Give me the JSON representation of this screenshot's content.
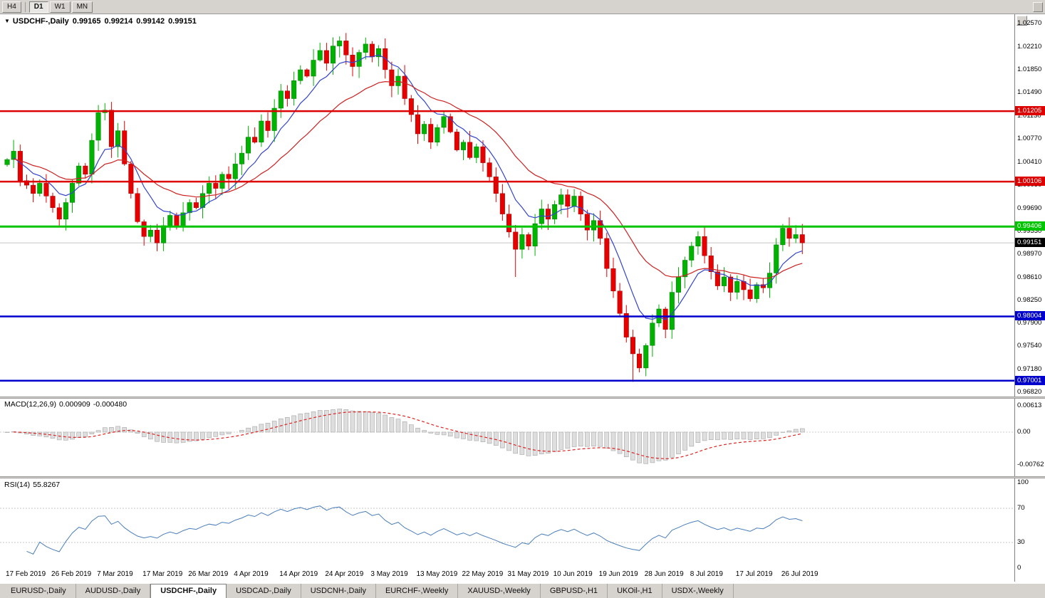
{
  "toolbar": {
    "timeframes": [
      {
        "label": "H4",
        "active": false
      },
      {
        "label": "D1",
        "active": true
      },
      {
        "label": "W1",
        "active": false
      },
      {
        "label": "MN",
        "active": false
      }
    ]
  },
  "header": {
    "symbol": "USDCHF-,Daily",
    "open": "0.99165",
    "high": "0.99214",
    "low": "0.99142",
    "close": "0.99151"
  },
  "price_axis": [
    "1.02570",
    "1.02210",
    "1.01850",
    "1.01490",
    "1.01130",
    "1.00770",
    "1.00410",
    "1.00050",
    "0.99690",
    "0.99330",
    "0.98970",
    "0.98610",
    "0.98250",
    "0.97900",
    "0.97540",
    "0.97180",
    "0.96820"
  ],
  "levels": [
    {
      "value": "1.01205",
      "color": "#dd0000",
      "kind": "resistance-line"
    },
    {
      "value": "1.00106",
      "color": "#dd0000",
      "kind": "resistance-line"
    },
    {
      "value": "0.99406",
      "color": "#00c400",
      "kind": "support-line"
    },
    {
      "value": "0.99151",
      "color": "#000000",
      "kind": "current-price"
    },
    {
      "value": "0.98004",
      "color": "#0000cc",
      "kind": "support-line"
    },
    {
      "value": "0.97001",
      "color": "#0000cc",
      "kind": "support-line"
    }
  ],
  "macd_panel": {
    "name": "MACD(12,26,9)",
    "value": "0.000909",
    "signal": "-0.000480",
    "axis": [
      "0.00613",
      "0.00",
      "-0.00762"
    ]
  },
  "rsi_panel": {
    "name": "RSI(14)",
    "value": "55.8267",
    "axis": [
      "100",
      "70",
      "30",
      "0"
    ]
  },
  "date_axis": [
    "17 Feb 2019",
    "26 Feb 2019",
    "7 Mar 2019",
    "17 Mar 2019",
    "26 Mar 2019",
    "4 Apr 2019",
    "14 Apr 2019",
    "24 Apr 2019",
    "3 May 2019",
    "13 May 2019",
    "22 May 2019",
    "31 May 2019",
    "10 Jun 2019",
    "19 Jun 2019",
    "28 Jun 2019",
    "8 Jul 2019",
    "17 Jul 2019",
    "26 Jul 2019"
  ],
  "tabs": [
    {
      "label": "EURUSD-,Daily",
      "active": false
    },
    {
      "label": "AUDUSD-,Daily",
      "active": false
    },
    {
      "label": "USDCHF-,Daily",
      "active": true
    },
    {
      "label": "USDCAD-,Daily",
      "active": false
    },
    {
      "label": "USDCNH-,Daily",
      "active": false
    },
    {
      "label": "EURCHF-,Weekly",
      "active": false
    },
    {
      "label": "XAUUSD-,Weekly",
      "active": false
    },
    {
      "label": "GBPUSD-,H1",
      "active": false
    },
    {
      "label": "UKOil-,H1",
      "active": false
    },
    {
      "label": "USDX-,Weekly",
      "active": false
    }
  ],
  "chart_data": {
    "type": "candlestick",
    "symbol": "USDCHF",
    "timeframe": "Daily",
    "label_every": 7,
    "price_range": [
      0.96754,
      1.0266
    ],
    "closes": [
      1.0045,
      1.0058,
      1.0012,
      1.0005,
      0.9992,
      1.0008,
      0.9988,
      0.997,
      0.9952,
      0.9978,
      1.0008,
      1.0035,
      1.0022,
      1.0075,
      1.0118,
      1.0122,
      1.0065,
      1.009,
      1.0038,
      0.9992,
      0.9948,
      0.9925,
      0.9935,
      0.9915,
      0.9942,
      0.9958,
      0.994,
      0.9962,
      0.9978,
      0.997,
      0.9992,
      1.0008,
      1.0,
      1.0022,
      1.0015,
      1.0038,
      1.0055,
      1.008,
      1.0072,
      1.0105,
      1.009,
      1.0125,
      1.0152,
      1.014,
      1.0168,
      1.0185,
      1.0175,
      1.02,
      1.0215,
      1.0195,
      1.0222,
      1.023,
      1.0208,
      1.019,
      1.0212,
      1.0225,
      1.0205,
      1.0218,
      1.0185,
      1.016,
      1.0175,
      1.014,
      1.0115,
      1.0085,
      1.01,
      1.0072,
      1.0095,
      1.0112,
      1.0088,
      1.006,
      1.0072,
      1.0048,
      1.0065,
      1.004,
      1.0018,
      0.9992,
      0.996,
      0.9932,
      0.9905,
      0.9928,
      0.991,
      0.9945,
      0.9968,
      0.9952,
      0.9975,
      0.999,
      0.9972,
      0.9988,
      0.996,
      0.9935,
      0.995,
      0.9922,
      0.9875,
      0.984,
      0.9805,
      0.9768,
      0.9742,
      0.972,
      0.9755,
      0.979,
      0.9812,
      0.978,
      0.9838,
      0.9862,
      0.9888,
      0.991,
      0.9925,
      0.9895,
      0.987,
      0.9848,
      0.9862,
      0.9838,
      0.9855,
      0.9842,
      0.9828,
      0.985,
      0.9845,
      0.9868,
      0.9912,
      0.9938,
      0.9922,
      0.9928,
      0.99151
    ],
    "high_overrides": {
      "14": 1.013,
      "51": 1.0237
    },
    "low_overrides": {
      "23": 0.9902,
      "78": 0.9862,
      "96": 0.96985
    },
    "colors": {
      "bull": "#00b300",
      "bear": "#e60000",
      "ma_fast": "#3344cc",
      "ma_slow": "#cc2222",
      "macd_hist_fill": "#dedede",
      "macd_hist_stroke": "#a6a6a6",
      "macd_signal": "#dd2222",
      "rsi_line": "#4a7ebb",
      "current_price_line": "#c4c4c4"
    }
  }
}
